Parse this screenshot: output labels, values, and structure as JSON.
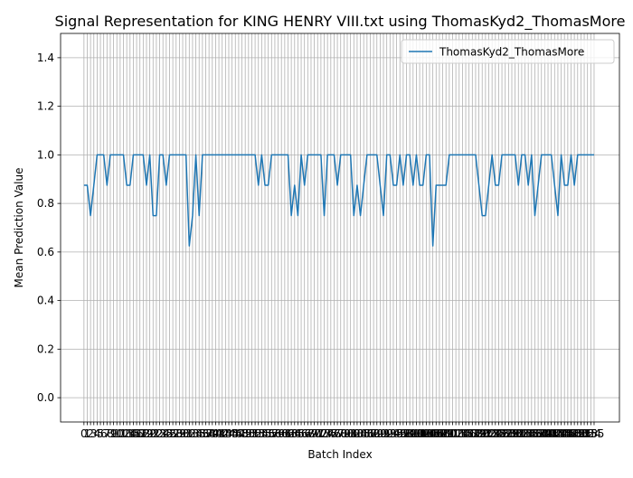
{
  "chart_data": {
    "type": "line",
    "title": "Signal Representation for KING HENRY VIII.txt using ThomasKyd2_ThomasMore",
    "x_label": "Batch Index",
    "y_label": "Mean Prediction Value",
    "x": [
      0,
      1,
      2,
      3,
      4,
      5,
      6,
      7,
      8,
      9,
      10,
      11,
      12,
      13,
      14,
      15,
      16,
      17,
      18,
      19,
      20,
      21,
      22,
      23,
      24,
      25,
      26,
      27,
      28,
      29,
      30,
      31,
      32,
      33,
      34,
      35,
      36,
      37,
      38,
      39,
      40,
      41,
      42,
      43,
      44,
      45,
      46,
      47,
      48,
      49,
      50,
      51,
      52,
      53,
      54,
      55,
      56,
      57,
      58,
      59,
      60,
      61,
      62,
      63,
      64,
      65,
      66,
      67,
      68,
      69,
      70,
      71,
      72,
      73,
      74,
      75,
      76,
      77,
      78,
      79,
      80,
      81,
      82,
      83,
      84,
      85,
      86,
      87,
      88,
      89,
      90,
      91,
      92,
      93,
      94,
      95,
      96,
      97,
      98,
      99,
      100,
      101,
      102,
      103,
      104,
      105,
      106,
      107,
      108,
      109,
      110,
      111,
      112,
      113,
      114,
      115,
      116,
      117,
      118,
      119,
      120,
      121,
      122,
      123,
      124,
      125,
      126,
      127,
      128,
      129,
      130,
      131,
      132,
      133,
      134,
      135,
      136,
      137,
      138,
      139,
      140,
      141,
      142,
      143,
      144,
      145,
      146,
      147,
      148,
      149,
      150,
      151,
      152,
      153,
      154,
      155
    ],
    "series": [
      {
        "name": "ThomasKyd2_ThomasMore",
        "color": "#1f77b4",
        "values": [
          0.875,
          0.875,
          0.75,
          0.875,
          1,
          1,
          1,
          0.875,
          1,
          1,
          1,
          1,
          1,
          0.875,
          0.875,
          1,
          1,
          1,
          1,
          0.875,
          1,
          0.75,
          0.75,
          1,
          1,
          0.875,
          1,
          1,
          1,
          1,
          1,
          1,
          0.625,
          0.75,
          1,
          0.75,
          1,
          1,
          1,
          1,
          1,
          1,
          1,
          1,
          1,
          1,
          1,
          1,
          1,
          1,
          1,
          1,
          1,
          0.875,
          1,
          0.875,
          0.875,
          1,
          1,
          1,
          1,
          1,
          1,
          0.75,
          0.875,
          0.75,
          1,
          0.875,
          1,
          1,
          1,
          1,
          1,
          0.75,
          1,
          1,
          1,
          0.875,
          1,
          1,
          1,
          1,
          0.75,
          0.875,
          0.75,
          0.875,
          1,
          1,
          1,
          1,
          0.875,
          0.75,
          1,
          1,
          0.875,
          0.875,
          1,
          0.875,
          1,
          1,
          0.875,
          1,
          0.875,
          0.875,
          1,
          1,
          0.625,
          0.875,
          0.875,
          0.875,
          0.875,
          1,
          1,
          1,
          1,
          1,
          1,
          1,
          1,
          1,
          0.875,
          0.75,
          0.75,
          0.875,
          1,
          0.875,
          0.875,
          1,
          1,
          1,
          1,
          1,
          0.875,
          1,
          1,
          0.875,
          1,
          0.75,
          0.875,
          1,
          1,
          1,
          1,
          0.875,
          0.75,
          1,
          0.875,
          0.875,
          1,
          0.875,
          1,
          1,
          1,
          1,
          1,
          1
        ]
      }
    ],
    "xlim": [
      -7.1,
      162.7
    ],
    "xticks": [
      0,
      1,
      2,
      3,
      4,
      5,
      6,
      7,
      8,
      9,
      10,
      11,
      12,
      13,
      14,
      15,
      16,
      17,
      18,
      19,
      20,
      21,
      22,
      23,
      24,
      25,
      26,
      27,
      28,
      29,
      30,
      31,
      32,
      33,
      34,
      35,
      36,
      37,
      38,
      39,
      40,
      41,
      42,
      43,
      44,
      45,
      46,
      47,
      48,
      49,
      50,
      51,
      52,
      53,
      54,
      55,
      56,
      57,
      58,
      59,
      60,
      61,
      62,
      63,
      64,
      65,
      66,
      67,
      68,
      69,
      70,
      71,
      72,
      73,
      74,
      75,
      76,
      77,
      78,
      79,
      80,
      81,
      82,
      83,
      84,
      85,
      86,
      87,
      88,
      89,
      90,
      91,
      92,
      93,
      94,
      95,
      96,
      97,
      98,
      99,
      100,
      101,
      102,
      103,
      104,
      105,
      106,
      107,
      108,
      109,
      110,
      111,
      112,
      113,
      114,
      115,
      116,
      117,
      118,
      119,
      120,
      121,
      122,
      123,
      124,
      125,
      126,
      127,
      128,
      129,
      130,
      131,
      132,
      133,
      134,
      135,
      136,
      137,
      138,
      139,
      140,
      141,
      142,
      143,
      144,
      145,
      146,
      147,
      148,
      149,
      150,
      151,
      152,
      153,
      154,
      155
    ],
    "ylim": [
      -0.1,
      1.5
    ],
    "yticks": [
      {
        "value": 0,
        "label": "0.0"
      },
      {
        "value": 0.2,
        "label": "0.2"
      },
      {
        "value": 0.4,
        "label": "0.4"
      },
      {
        "value": 0.6,
        "label": "0.6"
      },
      {
        "value": 0.8,
        "label": "0.8"
      },
      {
        "value": 1,
        "label": "1.0"
      },
      {
        "value": 1.2,
        "label": "1.2"
      },
      {
        "value": 1.4,
        "label": "1.4"
      }
    ],
    "grid": true,
    "legend": "upper right"
  }
}
